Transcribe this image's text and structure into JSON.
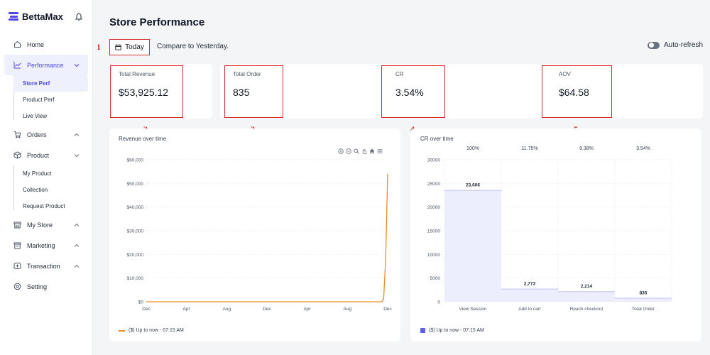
{
  "app": {
    "name": "BettaMax"
  },
  "sidebar": {
    "items": [
      {
        "label": "Home",
        "icon": "home-icon"
      },
      {
        "label": "Performance",
        "icon": "chart-line-icon",
        "expanded": true
      },
      {
        "label": "Orders",
        "icon": "cart-icon",
        "expanded": false
      },
      {
        "label": "Product",
        "icon": "box-icon",
        "expanded": true
      },
      {
        "label": "My Store",
        "icon": "store-icon",
        "expanded": false
      },
      {
        "label": "Marketing",
        "icon": "megaphone-icon",
        "expanded": false
      },
      {
        "label": "Transaction",
        "icon": "wallet-icon",
        "expanded": false
      },
      {
        "label": "Setting",
        "icon": "gear-icon"
      }
    ],
    "performance_sub": [
      "Store Perf",
      "Product Perf",
      "Live View"
    ],
    "product_sub": [
      "My Product",
      "Collection",
      "Request Product"
    ]
  },
  "header": {
    "title": "Store Performance",
    "date_button": "Today",
    "compare_text": "Compare to Yesterday.",
    "auto_refresh_label": "Auto-refresh"
  },
  "annotations": [
    "1",
    "2",
    "3",
    "4",
    "5"
  ],
  "metrics": [
    {
      "label": "Total Revenue",
      "value": "$53,925.12"
    },
    {
      "label": "Total Order",
      "value": "835"
    },
    {
      "label": "CR",
      "value": "3.54%"
    },
    {
      "label": "AOV",
      "value": "$64.58"
    }
  ],
  "revenue_chart": {
    "title": "Revenue over time",
    "legend": "($) Up to now - 07:15 AM",
    "line_color": "#f08a24"
  },
  "cr_chart": {
    "title": "CR over time",
    "legend": "($) Up to now - 07:15 AM",
    "bar_color": "#eceefd",
    "legend_color": "#5b5ef4"
  },
  "chart_data": [
    {
      "type": "line",
      "title": "Revenue over time",
      "x": [
        "Dec",
        "Apr",
        "Aug",
        "Dec",
        "Apr",
        "Aug",
        "Dec"
      ],
      "yticks": [
        "$0",
        "$10,000",
        "$20,000",
        "$30,000",
        "$40,000",
        "$50,000",
        "$60,000"
      ],
      "ylim": [
        0,
        60000
      ],
      "series": [
        {
          "name": "($) Up to now - 07:15 AM",
          "points": [
            [
              0,
              0
            ],
            [
              5.5,
              0
            ],
            [
              5.85,
              0
            ],
            [
              5.9,
              1000
            ],
            [
              5.95,
              18000
            ],
            [
              5.98,
              40000
            ],
            [
              6.0,
              54000
            ]
          ]
        }
      ],
      "grid": true
    },
    {
      "type": "bar",
      "title": "CR over time",
      "categories": [
        "View Session",
        "Add to cart",
        "Reach checkout",
        "Total Order"
      ],
      "values": [
        23606,
        2773,
        2214,
        835
      ],
      "value_labels": [
        "23,606",
        "2,773",
        "2,214",
        "835"
      ],
      "percent_labels": [
        "100%",
        "11.75%",
        "9.38%",
        "3.54%"
      ],
      "yticks": [
        "0",
        "5000",
        "10000",
        "15000",
        "20000",
        "25000",
        "30000"
      ],
      "ylim": [
        0,
        30000
      ],
      "grid": true
    }
  ]
}
